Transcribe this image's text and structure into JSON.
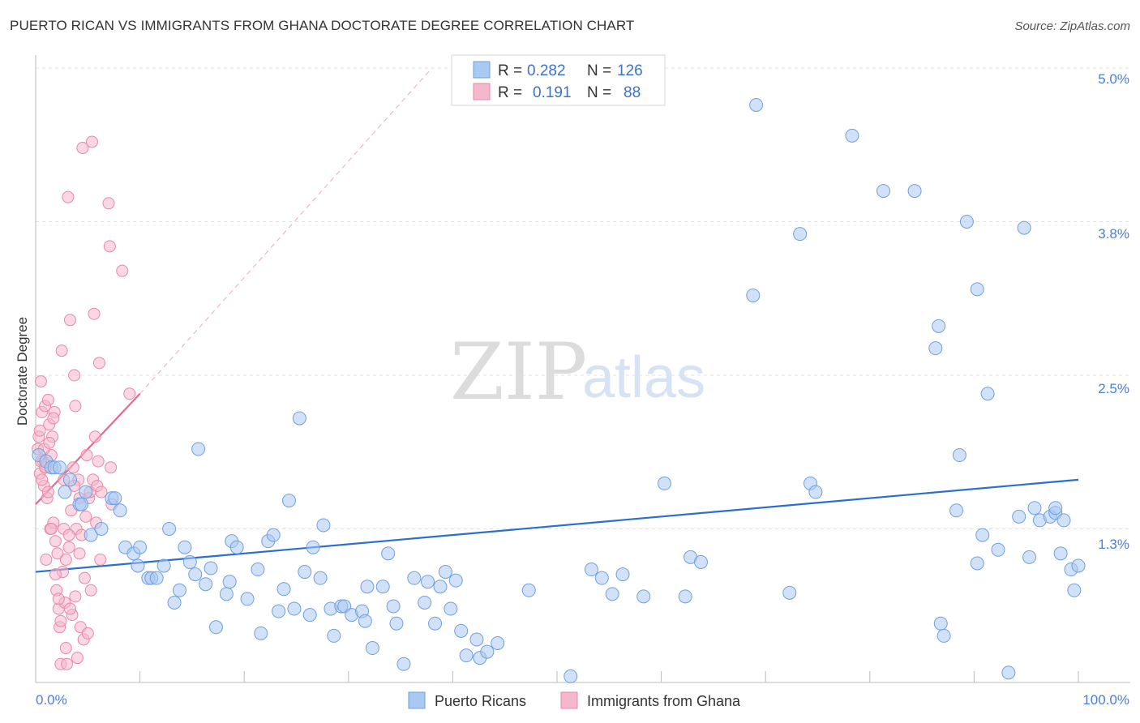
{
  "header": {
    "title": "PUERTO RICAN VS IMMIGRANTS FROM GHANA DOCTORATE DEGREE CORRELATION CHART",
    "source": "Source: ZipAtlas.com"
  },
  "watermark": {
    "zip": "ZIP",
    "atlas": "atlas"
  },
  "colors": {
    "blue": "#a9c8f2",
    "blue_stroke": "#6fa0e0",
    "blue_line": "#2a6fd0",
    "pink": "#f5b7cb",
    "pink_stroke": "#e889a8",
    "pink_line": "#e5688f",
    "label_blue": "#4a7fd4"
  },
  "stats": {
    "rows": [
      {
        "r_label": "R =",
        "r_value": "0.282",
        "n_label": "N =",
        "n_value": "126"
      },
      {
        "r_label": "R =",
        "r_value": "0.191",
        "n_label": "N =",
        "n_value": "88"
      }
    ]
  },
  "chart_data": {
    "type": "scatter",
    "title": "PUERTO RICAN VS IMMIGRANTS FROM GHANA DOCTORATE DEGREE CORRELATION CHART",
    "ylabel": "Doctorate Degree",
    "xlabel": "",
    "x_tick_labels": [
      "0.0%",
      "100.0%"
    ],
    "y_tick_labels": [
      "1.3%",
      "2.5%",
      "3.8%",
      "5.0%"
    ],
    "y_ticks": [
      1.25,
      2.5,
      3.75,
      5.0
    ],
    "xlim": [
      0,
      100
    ],
    "ylim": [
      0,
      5.0
    ],
    "grid": true,
    "legend_position": "bottom-center",
    "series": [
      {
        "name": "Puerto Ricans",
        "r": 0.282,
        "n": 126,
        "trend": {
          "x0": 0,
          "y0": 0.9,
          "x1": 100,
          "y1": 1.65
        },
        "points": [
          [
            0.3,
            1.85
          ],
          [
            1.0,
            1.8
          ],
          [
            1.5,
            1.75
          ],
          [
            1.8,
            1.75
          ],
          [
            2.3,
            1.75
          ],
          [
            2.8,
            1.55
          ],
          [
            3.3,
            1.65
          ],
          [
            4.2,
            1.45
          ],
          [
            4.4,
            1.45
          ],
          [
            4.8,
            1.55
          ],
          [
            5.3,
            1.2
          ],
          [
            6.3,
            1.25
          ],
          [
            7.3,
            1.5
          ],
          [
            7.6,
            1.5
          ],
          [
            8.1,
            1.4
          ],
          [
            8.6,
            1.1
          ],
          [
            9.4,
            1.05
          ],
          [
            9.8,
            0.95
          ],
          [
            10.0,
            1.1
          ],
          [
            10.8,
            0.85
          ],
          [
            11.1,
            0.85
          ],
          [
            11.6,
            0.85
          ],
          [
            12.3,
            0.95
          ],
          [
            12.8,
            1.25
          ],
          [
            13.3,
            0.65
          ],
          [
            13.8,
            0.75
          ],
          [
            14.3,
            1.1
          ],
          [
            14.8,
            0.98
          ],
          [
            15.3,
            0.88
          ],
          [
            15.6,
            1.9
          ],
          [
            16.3,
            0.8
          ],
          [
            16.8,
            0.93
          ],
          [
            17.3,
            0.45
          ],
          [
            18.3,
            0.72
          ],
          [
            18.6,
            0.82
          ],
          [
            18.8,
            1.15
          ],
          [
            19.3,
            1.1
          ],
          [
            20.3,
            0.68
          ],
          [
            21.3,
            0.92
          ],
          [
            21.6,
            0.4
          ],
          [
            22.3,
            1.15
          ],
          [
            22.8,
            1.2
          ],
          [
            23.3,
            0.58
          ],
          [
            23.8,
            0.76
          ],
          [
            24.3,
            1.48
          ],
          [
            24.8,
            0.6
          ],
          [
            25.3,
            2.15
          ],
          [
            25.8,
            0.9
          ],
          [
            26.3,
            0.55
          ],
          [
            26.6,
            1.1
          ],
          [
            27.3,
            0.85
          ],
          [
            27.6,
            1.28
          ],
          [
            28.3,
            0.6
          ],
          [
            28.6,
            0.38
          ],
          [
            29.3,
            0.62
          ],
          [
            29.6,
            0.62
          ],
          [
            30.3,
            0.55
          ],
          [
            31.3,
            0.58
          ],
          [
            31.6,
            0.5
          ],
          [
            32.3,
            0.28
          ],
          [
            31.8,
            0.78
          ],
          [
            33.3,
            0.78
          ],
          [
            34.3,
            0.62
          ],
          [
            34.6,
            0.48
          ],
          [
            33.8,
            1.05
          ],
          [
            35.3,
            0.15
          ],
          [
            36.3,
            0.85
          ],
          [
            37.3,
            0.65
          ],
          [
            37.6,
            0.82
          ],
          [
            38.3,
            0.48
          ],
          [
            38.8,
            0.78
          ],
          [
            39.3,
            0.9
          ],
          [
            39.8,
            0.6
          ],
          [
            40.3,
            0.83
          ],
          [
            40.8,
            0.42
          ],
          [
            41.3,
            0.22
          ],
          [
            42.3,
            0.35
          ],
          [
            42.6,
            0.2
          ],
          [
            43.3,
            0.25
          ],
          [
            44.3,
            0.32
          ],
          [
            47.3,
            0.75
          ],
          [
            51.3,
            0.05
          ],
          [
            58.3,
            0.7
          ],
          [
            60.3,
            1.62
          ],
          [
            62.3,
            0.7
          ],
          [
            62.8,
            1.02
          ],
          [
            63.8,
            0.98
          ],
          [
            68.8,
            3.15
          ],
          [
            69.1,
            4.7
          ],
          [
            72.3,
            0.73
          ],
          [
            73.3,
            3.65
          ],
          [
            74.3,
            1.62
          ],
          [
            74.8,
            1.55
          ],
          [
            78.3,
            4.45
          ],
          [
            81.3,
            4.0
          ],
          [
            84.3,
            4.0
          ],
          [
            86.3,
            2.72
          ],
          [
            86.6,
            2.9
          ],
          [
            86.8,
            0.48
          ],
          [
            87.1,
            0.38
          ],
          [
            88.3,
            1.4
          ],
          [
            88.6,
            1.85
          ],
          [
            89.3,
            3.75
          ],
          [
            90.3,
            3.2
          ],
          [
            90.3,
            0.97
          ],
          [
            90.8,
            1.2
          ],
          [
            91.3,
            2.35
          ],
          [
            92.3,
            1.08
          ],
          [
            93.3,
            0.08
          ],
          [
            94.3,
            1.35
          ],
          [
            94.8,
            3.7
          ],
          [
            95.3,
            1.02
          ],
          [
            95.8,
            1.42
          ],
          [
            96.3,
            1.32
          ],
          [
            97.3,
            1.35
          ],
          [
            97.8,
            1.38
          ],
          [
            97.8,
            1.42
          ],
          [
            98.3,
            1.05
          ],
          [
            98.6,
            1.32
          ],
          [
            99.3,
            0.92
          ],
          [
            99.6,
            0.75
          ],
          [
            100.0,
            0.95
          ],
          [
            53.3,
            0.92
          ],
          [
            54.3,
            0.85
          ],
          [
            55.3,
            0.72
          ],
          [
            56.3,
            0.88
          ]
        ]
      },
      {
        "name": "Immigrants from Ghana",
        "r": 0.191,
        "n": 88,
        "trend": {
          "x0": 0,
          "y0": 1.45,
          "x1": 10,
          "y1": 2.35
        },
        "trend_extension": {
          "x0": 10,
          "y0": 2.35,
          "x1": 38,
          "y1": 5.0
        },
        "points": [
          [
            0.2,
            1.9
          ],
          [
            0.3,
            2.0
          ],
          [
            0.4,
            1.7
          ],
          [
            0.5,
            2.45
          ],
          [
            0.6,
            2.2
          ],
          [
            0.7,
            1.8
          ],
          [
            0.8,
            1.6
          ],
          [
            0.9,
            2.25
          ],
          [
            1.0,
            1.75
          ],
          [
            1.1,
            1.5
          ],
          [
            1.2,
            2.3
          ],
          [
            1.3,
            2.1
          ],
          [
            1.4,
            1.25
          ],
          [
            1.5,
            1.85
          ],
          [
            1.6,
            2.0
          ],
          [
            1.7,
            1.3
          ],
          [
            1.8,
            2.2
          ],
          [
            1.9,
            1.15
          ],
          [
            2.0,
            0.75
          ],
          [
            2.1,
            1.05
          ],
          [
            2.2,
            0.6
          ],
          [
            2.3,
            0.45
          ],
          [
            2.4,
            0.15
          ],
          [
            2.5,
            2.7
          ],
          [
            2.6,
            0.9
          ],
          [
            2.7,
            1.25
          ],
          [
            2.8,
            0.65
          ],
          [
            2.9,
            0.28
          ],
          [
            3.0,
            0.15
          ],
          [
            3.1,
            3.95
          ],
          [
            3.2,
            1.1
          ],
          [
            3.3,
            2.95
          ],
          [
            3.4,
            1.4
          ],
          [
            3.5,
            0.55
          ],
          [
            3.6,
            1.75
          ],
          [
            3.7,
            2.5
          ],
          [
            3.8,
            2.25
          ],
          [
            3.9,
            1.25
          ],
          [
            4.0,
            0.2
          ],
          [
            4.1,
            1.65
          ],
          [
            4.2,
            1.5
          ],
          [
            4.3,
            0.45
          ],
          [
            4.4,
            1.2
          ],
          [
            4.5,
            4.35
          ],
          [
            4.6,
            0.35
          ],
          [
            4.7,
            0.85
          ],
          [
            4.8,
            1.35
          ],
          [
            4.9,
            1.85
          ],
          [
            5.0,
            0.4
          ],
          [
            5.1,
            1.5
          ],
          [
            5.2,
            1.55
          ],
          [
            5.3,
            0.75
          ],
          [
            5.4,
            4.4
          ],
          [
            5.5,
            1.65
          ],
          [
            5.6,
            3.0
          ],
          [
            5.7,
            2.0
          ],
          [
            5.8,
            1.3
          ],
          [
            5.9,
            1.6
          ],
          [
            6.0,
            1.8
          ],
          [
            6.1,
            2.6
          ],
          [
            6.2,
            1.0
          ],
          [
            6.3,
            1.55
          ],
          [
            7.0,
            3.9
          ],
          [
            7.1,
            3.55
          ],
          [
            7.2,
            1.75
          ],
          [
            7.3,
            1.45
          ],
          [
            8.3,
            3.35
          ],
          [
            9.0,
            2.35
          ],
          [
            0.4,
            2.05
          ],
          [
            0.6,
            1.65
          ],
          [
            0.8,
            1.9
          ],
          [
            1.2,
            1.55
          ],
          [
            1.5,
            1.25
          ],
          [
            1.9,
            0.88
          ],
          [
            2.4,
            0.5
          ],
          [
            2.9,
            1.0
          ],
          [
            3.3,
            0.6
          ],
          [
            3.8,
            0.7
          ],
          [
            4.2,
            1.05
          ],
          [
            0.5,
            1.8
          ],
          [
            0.9,
            1.75
          ],
          [
            1.3,
            1.95
          ],
          [
            1.7,
            2.15
          ],
          [
            2.2,
            0.68
          ],
          [
            2.7,
            1.65
          ],
          [
            3.2,
            1.2
          ],
          [
            3.7,
            1.6
          ],
          [
            1.0,
            1.0
          ]
        ]
      }
    ]
  },
  "legend": {
    "items": [
      {
        "label": "Puerto Ricans"
      },
      {
        "label": "Immigrants from Ghana"
      }
    ]
  }
}
